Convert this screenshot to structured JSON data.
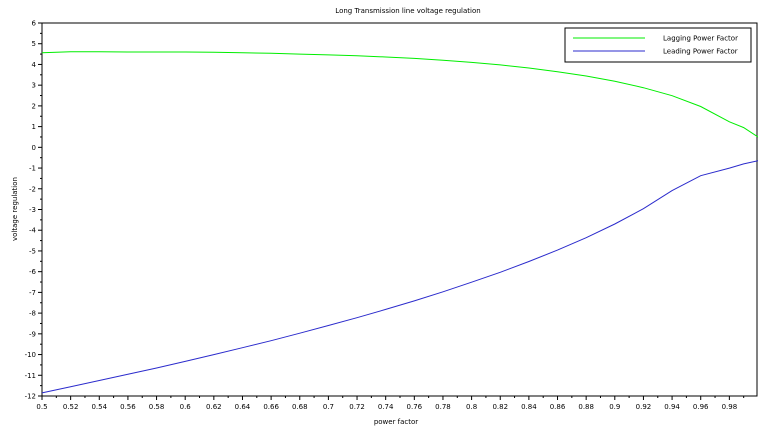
{
  "chart_data": {
    "type": "line",
    "title": "Long Transmission line voltage regulation",
    "xlabel": "power factor",
    "ylabel": "voltage regulation",
    "xlim": [
      0.5,
      1.0
    ],
    "ylim": [
      -12,
      6
    ],
    "xticks": [
      0.5,
      0.52,
      0.54,
      0.56,
      0.58,
      0.6,
      0.62,
      0.64,
      0.66,
      0.68,
      0.7,
      0.72,
      0.74,
      0.76,
      0.78,
      0.8,
      0.82,
      0.84,
      0.86,
      0.88,
      0.9,
      0.92,
      0.94,
      0.96,
      0.98
    ],
    "xtick_labels": [
      "0.5",
      "0.52",
      "0.54",
      "0.56",
      "0.58",
      "0.6",
      "0.62",
      "0.64",
      "0.66",
      "0.68",
      "0.7",
      "0.72",
      "0.74",
      "0.76",
      "0.78",
      "0.8",
      "0.82",
      "0.84",
      "0.86",
      "0.88",
      "0.9",
      "0.92",
      "0.94",
      "0.96",
      "0.98"
    ],
    "yticks": [
      6,
      5,
      4,
      3,
      2,
      1,
      0,
      -1,
      -2,
      -3,
      -4,
      -5,
      -6,
      -7,
      -8,
      -9,
      -10,
      -11,
      -12
    ],
    "ytick_labels": [
      "6",
      "5",
      "4",
      "3",
      "2",
      "1",
      "0",
      "-1",
      "-2",
      "-3",
      "-4",
      "-5",
      "-6",
      "-7",
      "-8",
      "-9",
      "-10",
      "-11",
      "-12"
    ],
    "legend_position": "top-right",
    "series": [
      {
        "name": "Lagging Power Factor",
        "color": "#00ee00",
        "x": [
          0.5,
          0.52,
          0.54,
          0.56,
          0.58,
          0.6,
          0.62,
          0.64,
          0.66,
          0.68,
          0.7,
          0.72,
          0.74,
          0.76,
          0.78,
          0.8,
          0.82,
          0.84,
          0.86,
          0.88,
          0.9,
          0.92,
          0.94,
          0.96,
          0.98,
          0.99,
          1.0
        ],
        "y": [
          4.56,
          4.61,
          4.61,
          4.6,
          4.6,
          4.6,
          4.59,
          4.56,
          4.54,
          4.5,
          4.46,
          4.42,
          4.36,
          4.29,
          4.2,
          4.1,
          3.98,
          3.83,
          3.65,
          3.44,
          3.19,
          2.88,
          2.49,
          1.97,
          1.23,
          0.95,
          0.5
        ]
      },
      {
        "name": "Leading Power Factor",
        "color": "#2b2bcc",
        "x": [
          0.5,
          0.52,
          0.54,
          0.56,
          0.58,
          0.6,
          0.62,
          0.64,
          0.66,
          0.68,
          0.7,
          0.72,
          0.74,
          0.76,
          0.78,
          0.8,
          0.82,
          0.84,
          0.86,
          0.88,
          0.9,
          0.92,
          0.94,
          0.96,
          0.98,
          0.99,
          1.0
        ],
        "y": [
          -11.85,
          -11.55,
          -11.25,
          -10.95,
          -10.65,
          -10.33,
          -10.0,
          -9.67,
          -9.33,
          -8.97,
          -8.6,
          -8.22,
          -7.82,
          -7.41,
          -6.97,
          -6.51,
          -6.03,
          -5.51,
          -4.96,
          -4.36,
          -3.7,
          -2.96,
          -2.09,
          -1.37,
          -1.0,
          -0.8,
          -0.65
        ]
      }
    ]
  }
}
